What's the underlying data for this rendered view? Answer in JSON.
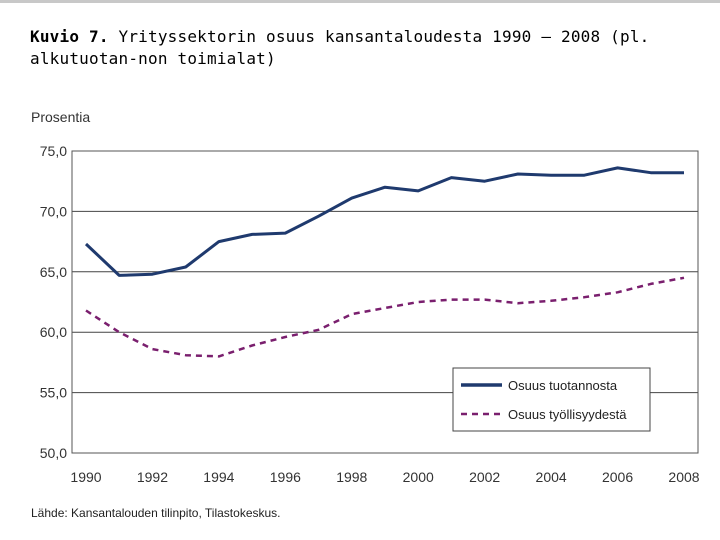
{
  "title": {
    "lead": "Kuvio 7.",
    "text": "Yrityssektorin osuus kansantaloudesta 1990 – 2008 (pl. alkutuotan-non toimialat)"
  },
  "source": "Lähde: Kansantalouden tilinpito, Tilastokeskus.",
  "chart_data": {
    "type": "line",
    "title": "Kuvio 7. Yrityssektorin osuus kansantaloudesta 1990 – 2008 (pl. alkutuotan-non toimialat)",
    "ylabel": "Prosentia",
    "xlabel": "",
    "ylim": [
      50,
      75
    ],
    "yticks": [
      "75,0",
      "70,0",
      "65,0",
      "60,0",
      "55,0",
      "50,0"
    ],
    "ytick_values": [
      75,
      70,
      65,
      60,
      55,
      50
    ],
    "xlim": [
      1990,
      2008
    ],
    "xticks": [
      "1990",
      "1992",
      "1994",
      "1996",
      "1998",
      "2000",
      "2002",
      "2004",
      "2006",
      "2008"
    ],
    "xtick_values": [
      1990,
      1992,
      1994,
      1996,
      1998,
      2000,
      2002,
      2004,
      2006,
      2008
    ],
    "grid": true,
    "legend_position": "bottom-right",
    "x": [
      1990,
      1991,
      1992,
      1993,
      1994,
      1995,
      1996,
      1997,
      1998,
      1999,
      2000,
      2001,
      2002,
      2003,
      2004,
      2005,
      2006,
      2007,
      2008
    ],
    "series": [
      {
        "name": "Osuus tuotannosta",
        "color": "#1f3a6e",
        "style": "solid",
        "values": [
          67.3,
          64.7,
          64.8,
          65.4,
          67.5,
          68.1,
          68.2,
          69.6,
          71.1,
          72.0,
          71.7,
          72.8,
          72.5,
          73.1,
          73.0,
          73.0,
          73.6,
          73.2,
          73.2
        ]
      },
      {
        "name": "Osuus työllisyydestä",
        "color": "#7a1f6e",
        "style": "dashed",
        "values": [
          61.8,
          60.0,
          58.6,
          58.1,
          58.0,
          58.9,
          59.6,
          60.2,
          61.5,
          62.0,
          62.5,
          62.7,
          62.7,
          62.4,
          62.6,
          62.9,
          63.3,
          64.0,
          64.5
        ]
      }
    ]
  }
}
